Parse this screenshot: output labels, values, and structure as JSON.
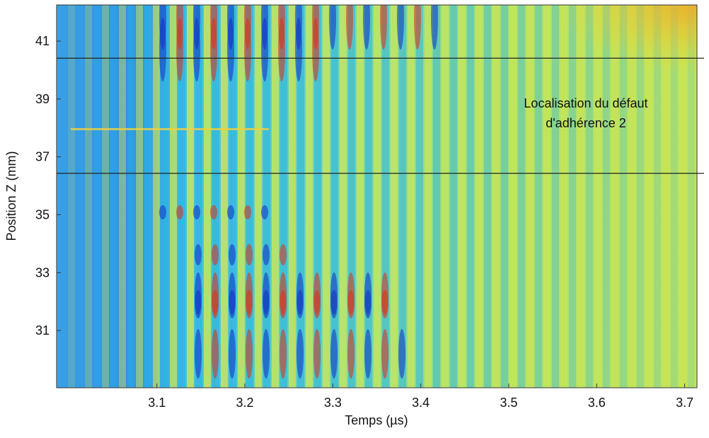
{
  "chart_data": {
    "type": "heatmap",
    "xlabel": "Temps (µs)",
    "ylabel": "Position Z (mm)",
    "xlim": [
      2.986,
      3.714
    ],
    "xticks": [
      3.1,
      3.2,
      3.3,
      3.4,
      3.5,
      3.6,
      3.7
    ],
    "ylim": [
      29.02,
      42.25
    ],
    "yticks": [
      31,
      33,
      35,
      37,
      39,
      41
    ],
    "hlines": [
      40.41,
      36.43
    ],
    "hline_color": "#222222",
    "annotation": [
      "Localisation du défaut",
      "d'adhérence 2"
    ]
  }
}
